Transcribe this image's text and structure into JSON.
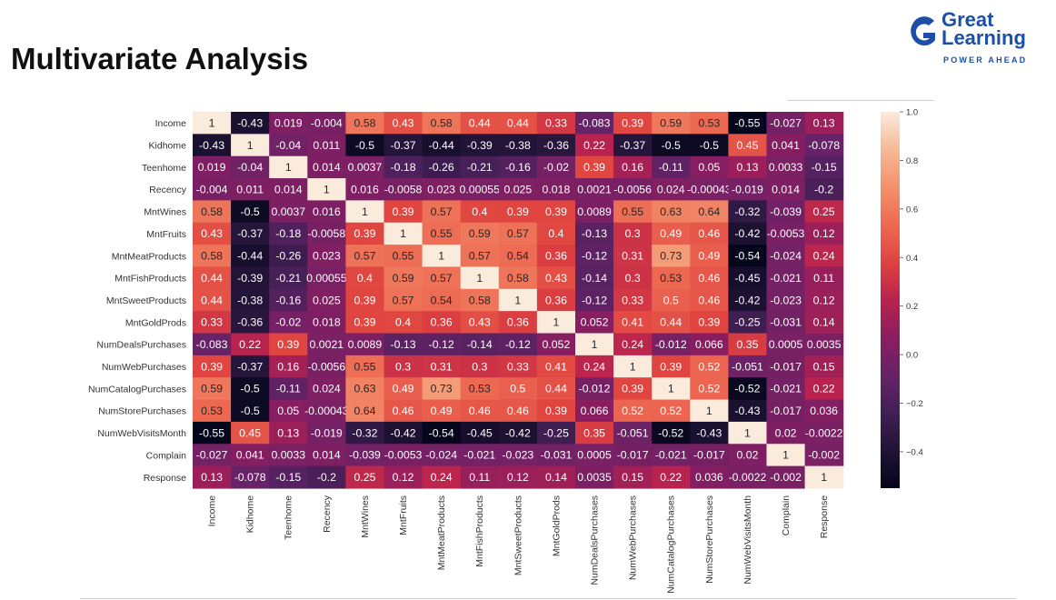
{
  "slide": {
    "title": "Multivariate Analysis"
  },
  "logo": {
    "name_line1": "Great",
    "name_line2": "Learning",
    "tagline": "POWER AHEAD",
    "brand_color": "#1d4fa8"
  },
  "chart_data": {
    "type": "heatmap",
    "title": "",
    "colormap": "rocket",
    "variables": [
      "Income",
      "Kidhome",
      "Teenhome",
      "Recency",
      "MntWines",
      "MntFruits",
      "MntMeatProducts",
      "MntFishProducts",
      "MntSweetProducts",
      "MntGoldProds",
      "NumDealsPurchases",
      "NumWebPurchases",
      "NumCatalogPurchases",
      "NumStorePurchases",
      "NumWebVisitsMonth",
      "Complain",
      "Response"
    ],
    "values": [
      [
        1,
        -0.43,
        0.019,
        -0.004,
        0.58,
        0.43,
        0.58,
        0.44,
        0.44,
        0.33,
        -0.083,
        0.39,
        0.59,
        0.53,
        -0.55,
        -0.027,
        0.13
      ],
      [
        -0.43,
        1,
        -0.04,
        0.011,
        -0.5,
        -0.37,
        -0.44,
        -0.39,
        -0.38,
        -0.36,
        0.22,
        -0.37,
        -0.5,
        -0.5,
        0.45,
        0.041,
        -0.078
      ],
      [
        0.019,
        -0.04,
        1,
        0.014,
        0.0037,
        -0.18,
        -0.26,
        -0.21,
        -0.16,
        -0.02,
        0.39,
        0.16,
        -0.11,
        0.05,
        0.13,
        0.0033,
        -0.15
      ],
      [
        -0.004,
        0.011,
        0.014,
        1,
        0.016,
        -0.0058,
        0.023,
        0.00055,
        0.025,
        0.018,
        0.0021,
        -0.0056,
        0.024,
        -0.00043,
        -0.019,
        0.014,
        -0.2
      ],
      [
        0.58,
        -0.5,
        0.0037,
        0.016,
        1,
        0.39,
        0.57,
        0.4,
        0.39,
        0.39,
        0.0089,
        0.55,
        0.63,
        0.64,
        -0.32,
        -0.039,
        0.25
      ],
      [
        0.43,
        -0.37,
        -0.18,
        -0.0058,
        0.39,
        1,
        0.55,
        0.59,
        0.57,
        0.4,
        -0.13,
        0.3,
        0.49,
        0.46,
        -0.42,
        -0.0053,
        0.12
      ],
      [
        0.58,
        -0.44,
        -0.26,
        0.023,
        0.57,
        0.55,
        1,
        0.57,
        0.54,
        0.36,
        -0.12,
        0.31,
        0.73,
        0.49,
        -0.54,
        -0.024,
        0.24
      ],
      [
        0.44,
        -0.39,
        -0.21,
        0.00055,
        0.4,
        0.59,
        0.57,
        1,
        0.58,
        0.43,
        -0.14,
        0.3,
        0.53,
        0.46,
        -0.45,
        -0.021,
        0.11
      ],
      [
        0.44,
        -0.38,
        -0.16,
        0.025,
        0.39,
        0.57,
        0.54,
        0.58,
        1,
        0.36,
        -0.12,
        0.33,
        0.5,
        0.46,
        -0.42,
        -0.023,
        0.12
      ],
      [
        0.33,
        -0.36,
        -0.02,
        0.018,
        0.39,
        0.4,
        0.36,
        0.43,
        0.36,
        1,
        0.052,
        0.41,
        0.44,
        0.39,
        -0.25,
        -0.031,
        0.14
      ],
      [
        -0.083,
        0.22,
        0.39,
        0.0021,
        0.0089,
        -0.13,
        -0.12,
        -0.14,
        -0.12,
        0.052,
        1,
        0.24,
        -0.012,
        0.066,
        0.35,
        0.0005,
        0.0035
      ],
      [
        0.39,
        -0.37,
        0.16,
        -0.0056,
        0.55,
        0.3,
        0.31,
        0.3,
        0.33,
        0.41,
        0.24,
        1,
        0.39,
        0.52,
        -0.051,
        -0.017,
        0.15
      ],
      [
        0.59,
        -0.5,
        -0.11,
        0.024,
        0.63,
        0.49,
        0.73,
        0.53,
        0.5,
        0.44,
        -0.012,
        0.39,
        1,
        0.52,
        -0.52,
        -0.021,
        0.22
      ],
      [
        0.53,
        -0.5,
        0.05,
        -0.00043,
        0.64,
        0.46,
        0.49,
        0.46,
        0.46,
        0.39,
        0.066,
        0.52,
        0.52,
        1,
        -0.43,
        -0.017,
        0.036
      ],
      [
        -0.55,
        0.45,
        0.13,
        -0.019,
        -0.32,
        -0.42,
        -0.54,
        -0.45,
        -0.42,
        -0.25,
        0.35,
        -0.051,
        -0.52,
        -0.43,
        1,
        0.02,
        -0.0022
      ],
      [
        -0.027,
        0.041,
        0.0033,
        0.014,
        -0.039,
        -0.0053,
        -0.024,
        -0.021,
        -0.023,
        -0.031,
        0.0005,
        -0.017,
        -0.021,
        -0.017,
        0.02,
        1,
        -0.002
      ],
      [
        0.13,
        -0.078,
        -0.15,
        -0.2,
        0.25,
        0.12,
        0.24,
        0.11,
        0.12,
        0.14,
        0.0035,
        0.15,
        0.22,
        0.036,
        -0.0022,
        -0.002,
        1
      ]
    ],
    "value_range": [
      -0.55,
      1.0
    ],
    "colorbar_ticks": [
      "1.0",
      "0.8",
      "0.6",
      "0.4",
      "0.2",
      "0.0",
      "−0.2",
      "−0.4"
    ],
    "colorbar_tick_values": [
      1.0,
      0.8,
      0.6,
      0.4,
      0.2,
      0.0,
      -0.2,
      -0.4
    ],
    "legend": "colorbar-right",
    "grid": false
  }
}
